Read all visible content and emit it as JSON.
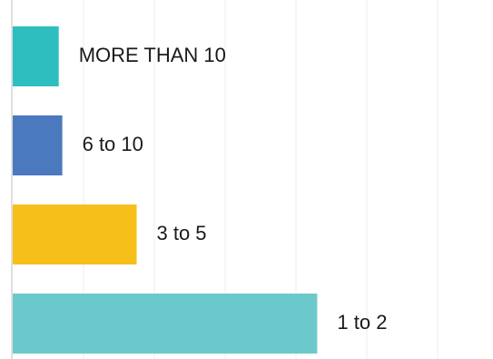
{
  "chart_data": {
    "type": "bar",
    "orientation": "horizontal",
    "categories": [
      "MORE THAN 10",
      "6 to 10",
      "3 to 5",
      "1 to 2"
    ],
    "values": [
      6.5,
      7,
      17.5,
      43
    ],
    "colors": [
      "#2dbfbf",
      "#4b79bd",
      "#f7bf19",
      "#6bc9cb"
    ],
    "gridline_color": "#ececec",
    "axis_color": "#bfbfbf",
    "xlim": [
      0,
      70
    ],
    "grid": true,
    "legend": "none",
    "title": "",
    "xlabel": "",
    "ylabel": ""
  }
}
